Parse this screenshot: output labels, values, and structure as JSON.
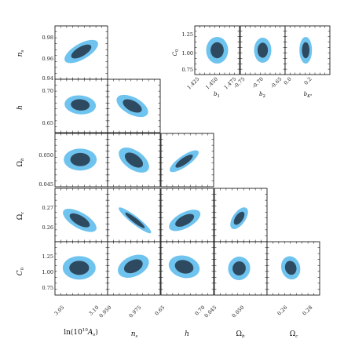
{
  "chart_data": [
    {
      "type": "corner",
      "description_of_contours": "2D marginal posterior contours (inner 68% dark, outer 95% light blue) for pairs of cosmological parameters",
      "parameters": [
        {
          "key": "lnAs",
          "label": "ln(10^10 A_s)",
          "ticks": [
            3.05,
            3.1
          ],
          "tick_labels": [
            "3.05",
            "3.10"
          ]
        },
        {
          "key": "ns",
          "label": "n_s",
          "ticks": [
            0.94,
            0.96,
            0.98
          ],
          "x_tick_labels": [
            "0.950",
            "0.975"
          ],
          "x_ticks": [
            0.95,
            0.975
          ],
          "y_tick_labels": [
            "0.94",
            "0.96",
            "0.98"
          ]
        },
        {
          "key": "h",
          "label": "h",
          "x_ticks": [
            0.65,
            0.7
          ],
          "x_tick_labels": [
            "0.65",
            "0.70"
          ],
          "y_ticks": [
            0.65,
            0.7
          ],
          "y_tick_labels": [
            "0.65",
            "0.70"
          ]
        },
        {
          "key": "Omega_b",
          "label": "Ω_b",
          "x_ticks": [
            0.045,
            0.05
          ],
          "x_tick_labels": [
            "0.045",
            "0.050"
          ],
          "y_ticks": [
            0.045,
            0.05
          ],
          "y_tick_labels": [
            "0.045",
            "0.050"
          ]
        },
        {
          "key": "Omega_c",
          "label": "Ω_c",
          "x_ticks": [
            0.26,
            0.28
          ],
          "x_tick_labels": [
            "0.26",
            "0.28"
          ],
          "y_ticks": [
            0.26,
            0.27
          ],
          "y_tick_labels": [
            "0.26",
            "0.27"
          ]
        },
        {
          "key": "C0",
          "label": "C_0",
          "y_ticks": [
            0.75,
            1.0,
            1.25
          ],
          "y_tick_labels": [
            "0.75",
            "1.00",
            "1.25"
          ]
        }
      ],
      "contours_lower_triangle": [
        {
          "x": "lnAs",
          "y": "ns",
          "center": [
            3.08,
            0.963
          ],
          "correlation": "positive"
        },
        {
          "x": "lnAs",
          "y": "h",
          "center": [
            3.08,
            0.675
          ],
          "correlation": "weak"
        },
        {
          "x": "ns",
          "y": "h",
          "center": [
            0.963,
            0.675
          ],
          "correlation": "negative"
        },
        {
          "x": "lnAs",
          "y": "Omega_b",
          "center": [
            3.08,
            0.0485
          ],
          "correlation": "none"
        },
        {
          "x": "ns",
          "y": "Omega_b",
          "center": [
            0.963,
            0.0485
          ],
          "correlation": "negative"
        },
        {
          "x": "h",
          "y": "Omega_b",
          "center": [
            0.675,
            0.0485
          ],
          "correlation": "strong positive"
        },
        {
          "x": "lnAs",
          "y": "Omega_c",
          "center": [
            3.08,
            0.263
          ],
          "correlation": "negative"
        },
        {
          "x": "ns",
          "y": "Omega_c",
          "center": [
            0.963,
            0.263
          ],
          "correlation": "strong negative"
        },
        {
          "x": "h",
          "y": "Omega_c",
          "center": [
            0.675,
            0.263
          ],
          "correlation": "positive"
        },
        {
          "x": "Omega_b",
          "y": "Omega_c",
          "center": [
            0.0485,
            0.263
          ],
          "correlation": "positive"
        },
        {
          "x": "lnAs",
          "y": "C0",
          "center": [
            3.08,
            1.0
          ],
          "correlation": "weak"
        },
        {
          "x": "ns",
          "y": "C0",
          "center": [
            0.963,
            1.0
          ],
          "correlation": "positive"
        },
        {
          "x": "h",
          "y": "C0",
          "center": [
            0.675,
            1.0
          ],
          "correlation": "weak negative"
        },
        {
          "x": "Omega_b",
          "y": "C0",
          "center": [
            0.0485,
            1.0
          ],
          "correlation": "weak negative"
        },
        {
          "x": "Omega_c",
          "y": "C0",
          "center": [
            0.263,
            1.0
          ],
          "correlation": "weak negative"
        }
      ]
    },
    {
      "type": "corner-inset",
      "y_label": "C_0",
      "y_ticks": [
        0.75,
        1.0,
        1.25
      ],
      "y_tick_labels": [
        "0.75",
        "1.00",
        "1.25"
      ],
      "panels": [
        {
          "x_label": "b_1",
          "x_tick_labels": [
            "1.425",
            "1.450",
            "1.475"
          ],
          "center_C0": 1.0
        },
        {
          "x_label": "b_2",
          "x_tick_labels": [
            "-0.75",
            "-0.70",
            "-0.65"
          ],
          "center_C0": 1.0
        },
        {
          "x_label": "b_{K^2}",
          "x_tick_labels": [
            "0.0",
            "0.2"
          ],
          "center_C0": 1.0
        }
      ]
    }
  ]
}
